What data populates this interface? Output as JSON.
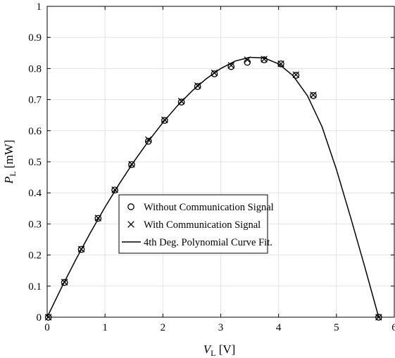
{
  "chart_data": {
    "type": "scatter",
    "xlabel": {
      "main": "V",
      "sub": "L",
      "unit": " [V]"
    },
    "ylabel": {
      "main": "P",
      "sub": "L",
      "unit": " [mW]"
    },
    "xlim": [
      0,
      6
    ],
    "ylim": [
      0,
      1
    ],
    "x_ticks": [
      0,
      1,
      2,
      3,
      4,
      5,
      6
    ],
    "y_ticks": [
      0,
      0.1,
      0.2,
      0.3,
      0.4,
      0.5,
      0.6,
      0.7,
      0.8,
      0.9,
      1
    ],
    "grid": true,
    "legend_position": "center-left",
    "series": [
      {
        "name": "Without Communication Signal",
        "marker": "circle",
        "points": [
          [
            0.02,
            0.0
          ],
          [
            0.3,
            0.112
          ],
          [
            0.59,
            0.218
          ],
          [
            0.88,
            0.318
          ],
          [
            1.17,
            0.409
          ],
          [
            1.46,
            0.491
          ],
          [
            1.75,
            0.566
          ],
          [
            2.03,
            0.633
          ],
          [
            2.32,
            0.692
          ],
          [
            2.6,
            0.742
          ],
          [
            2.89,
            0.783
          ],
          [
            3.18,
            0.806
          ],
          [
            3.46,
            0.82
          ],
          [
            3.75,
            0.828
          ],
          [
            4.04,
            0.815
          ],
          [
            4.3,
            0.778
          ],
          [
            4.6,
            0.713
          ],
          [
            5.73,
            0.0
          ]
        ]
      },
      {
        "name": "With Communication Signal",
        "marker": "x",
        "points": [
          [
            0.02,
            0.0
          ],
          [
            0.3,
            0.113
          ],
          [
            0.59,
            0.219
          ],
          [
            0.88,
            0.319
          ],
          [
            1.17,
            0.41
          ],
          [
            1.46,
            0.492
          ],
          [
            1.75,
            0.571
          ],
          [
            2.03,
            0.635
          ],
          [
            2.32,
            0.695
          ],
          [
            2.6,
            0.745
          ],
          [
            2.89,
            0.786
          ],
          [
            3.18,
            0.81
          ],
          [
            3.46,
            0.828
          ],
          [
            3.75,
            0.83
          ],
          [
            4.04,
            0.815
          ],
          [
            4.3,
            0.78
          ],
          [
            4.6,
            0.715
          ],
          [
            5.73,
            0.0
          ]
        ]
      },
      {
        "name": "4th Deg. Polynomial Curve Fit.",
        "marker": "line",
        "points": [
          [
            0.0,
            0.0
          ],
          [
            0.25,
            0.096
          ],
          [
            0.5,
            0.187
          ],
          [
            0.75,
            0.273
          ],
          [
            1.0,
            0.354
          ],
          [
            1.25,
            0.43
          ],
          [
            1.5,
            0.501
          ],
          [
            1.75,
            0.566
          ],
          [
            2.0,
            0.626
          ],
          [
            2.25,
            0.68
          ],
          [
            2.5,
            0.727
          ],
          [
            2.75,
            0.767
          ],
          [
            3.0,
            0.8
          ],
          [
            3.25,
            0.824
          ],
          [
            3.5,
            0.836
          ],
          [
            3.75,
            0.834
          ],
          [
            4.0,
            0.815
          ],
          [
            4.25,
            0.777
          ],
          [
            4.5,
            0.712
          ],
          [
            4.75,
            0.613
          ],
          [
            5.0,
            0.475
          ],
          [
            5.25,
            0.318
          ],
          [
            5.5,
            0.155
          ],
          [
            5.73,
            0.0
          ]
        ]
      }
    ]
  }
}
